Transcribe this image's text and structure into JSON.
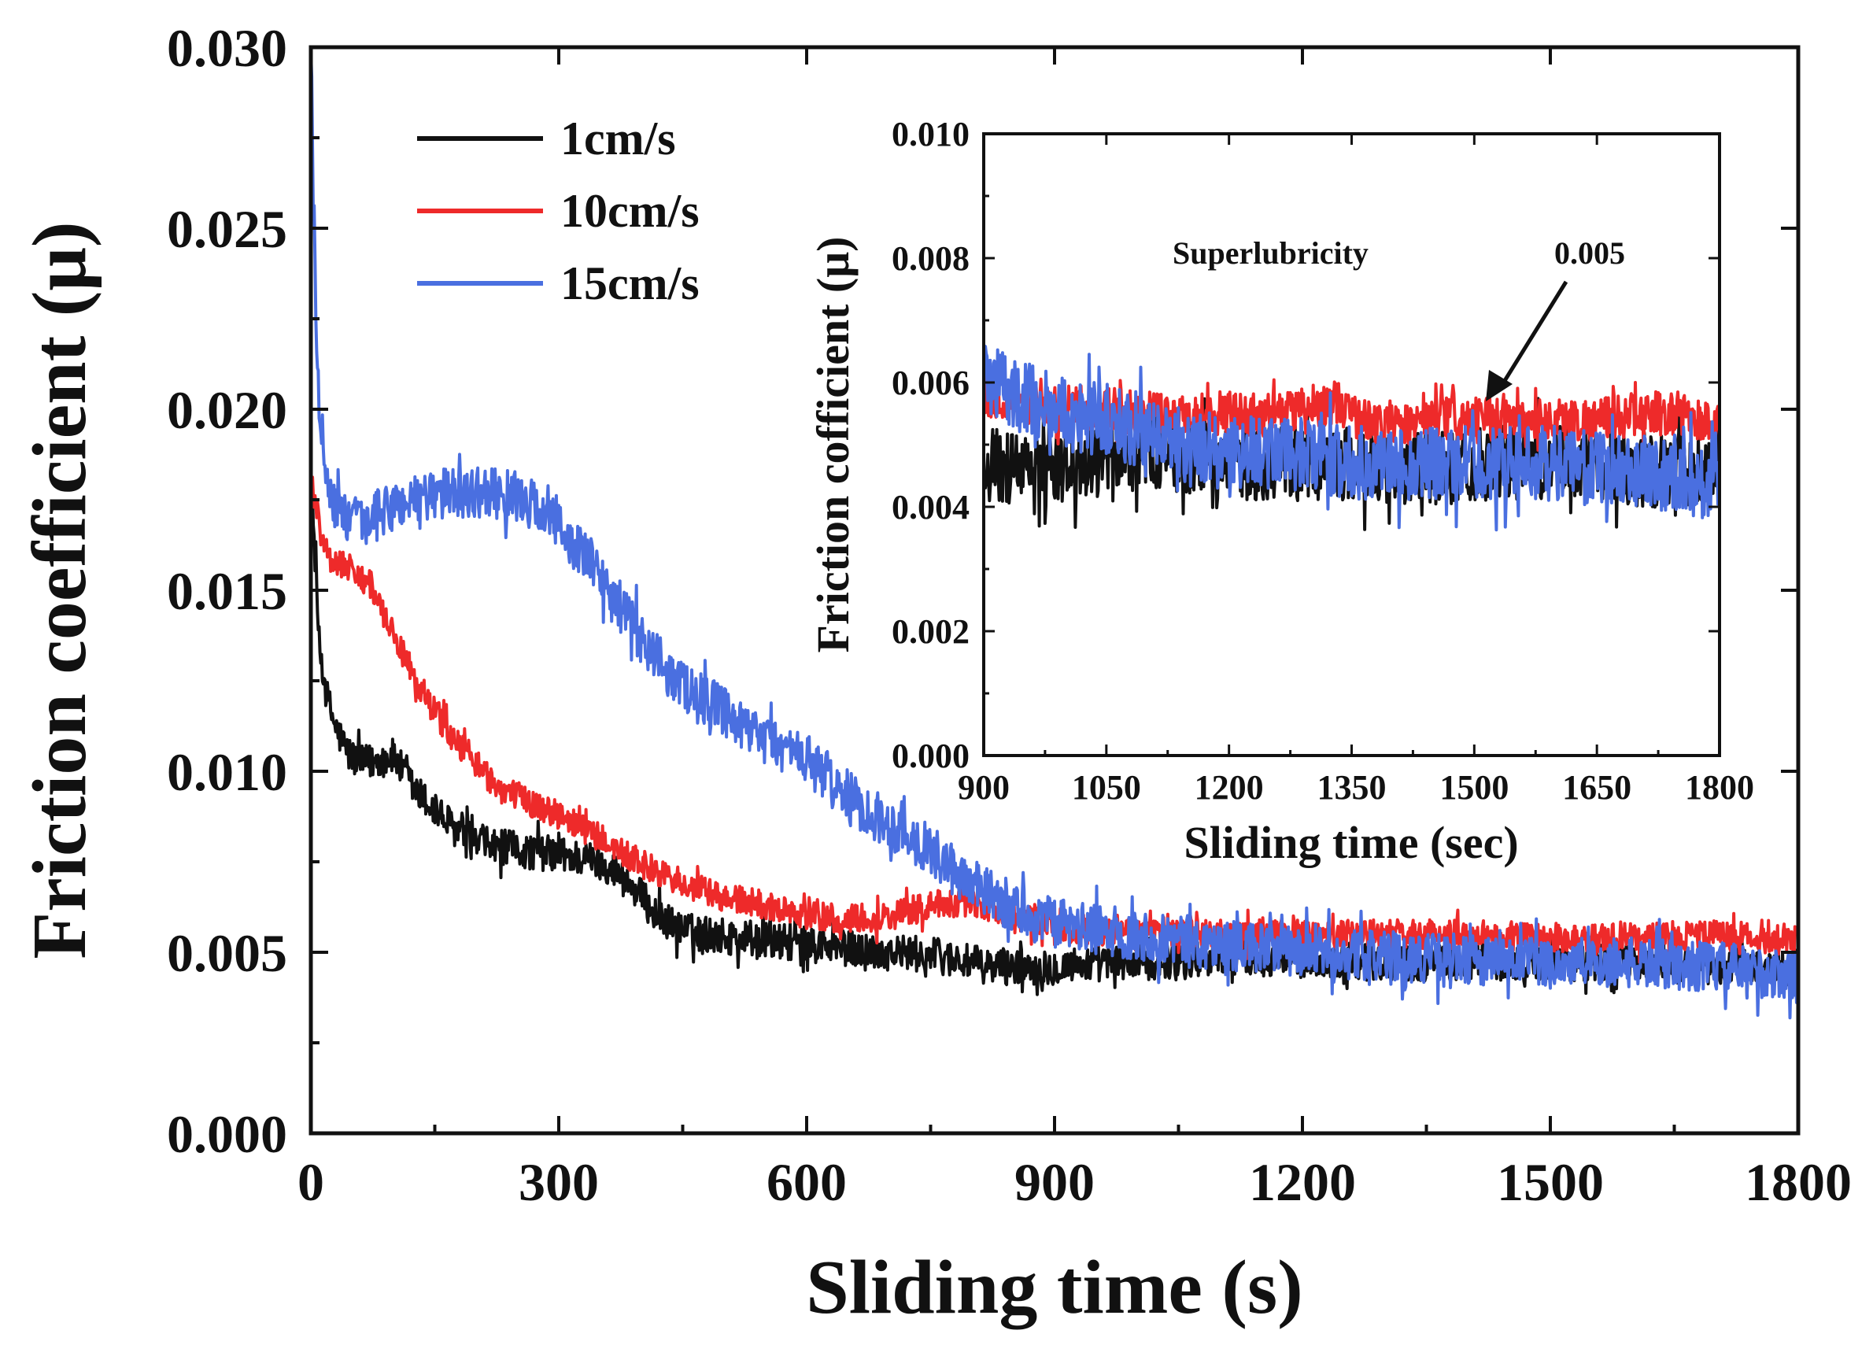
{
  "chart_data": [
    {
      "id": "main",
      "type": "line",
      "xlabel": "Sliding time (s)",
      "ylabel": "Friction coefficient (μ)",
      "xlim": [
        0,
        1800
      ],
      "ylim": [
        0,
        0.03
      ],
      "xticks": [
        0,
        300,
        600,
        900,
        1200,
        1500,
        1800
      ],
      "xtick_labels": [
        "0",
        "300",
        "600",
        "900",
        "1200",
        "1500",
        "1800"
      ],
      "yticks": [
        0,
        0.005,
        0.01,
        0.015,
        0.02,
        0.025,
        0.03
      ],
      "ytick_labels": [
        "0.000",
        "0.005",
        "0.010",
        "0.015",
        "0.020",
        "0.025",
        "0.030"
      ],
      "grid": false,
      "legend_position": "top-left",
      "series": [
        {
          "name": "1cm/s",
          "color": "#111111",
          "noise": 0.0005,
          "x": [
            0,
            5,
            10,
            20,
            30,
            45,
            60,
            80,
            100,
            125,
            150,
            180,
            200,
            230,
            260,
            300,
            330,
            360,
            390,
            420,
            450,
            480,
            520,
            560,
            600,
            650,
            700,
            760,
            820,
            870,
            900,
            950,
            1000,
            1100,
            1200,
            1300,
            1400,
            1500,
            1600,
            1700,
            1800
          ],
          "values": [
            0.018,
            0.016,
            0.0135,
            0.012,
            0.0112,
            0.0105,
            0.0102,
            0.0103,
            0.0104,
            0.0095,
            0.0089,
            0.0083,
            0.008,
            0.0079,
            0.0078,
            0.0077,
            0.0076,
            0.0074,
            0.0068,
            0.006,
            0.0056,
            0.0055,
            0.0054,
            0.0053,
            0.0052,
            0.0051,
            0.005,
            0.0049,
            0.0046,
            0.0046,
            0.0046,
            0.0047,
            0.0047,
            0.0049,
            0.0048,
            0.0047,
            0.0047,
            0.0047,
            0.0047,
            0.0046,
            0.0046
          ]
        },
        {
          "name": "10cm/s",
          "color": "#ee2a2a",
          "noise": 0.0004,
          "x": [
            0,
            5,
            10,
            20,
            30,
            50,
            70,
            90,
            110,
            140,
            170,
            200,
            230,
            260,
            300,
            340,
            380,
            420,
            460,
            500,
            550,
            600,
            650,
            700,
            750,
            800,
            850,
            900,
            1000,
            1100,
            1200,
            1300,
            1400,
            1500,
            1600,
            1700,
            1800
          ],
          "values": [
            0.018,
            0.0175,
            0.0168,
            0.016,
            0.0158,
            0.0156,
            0.0152,
            0.0142,
            0.0133,
            0.012,
            0.011,
            0.0102,
            0.0095,
            0.0092,
            0.0088,
            0.0083,
            0.0077,
            0.0072,
            0.0068,
            0.0065,
            0.0063,
            0.006,
            0.0059,
            0.006,
            0.0063,
            0.0064,
            0.006,
            0.0057,
            0.0055,
            0.0055,
            0.0055,
            0.0055,
            0.0055,
            0.0054,
            0.0054,
            0.0055,
            0.0053
          ]
        },
        {
          "name": "15cm/s",
          "color": "#4a6fe0",
          "noise": 0.0007,
          "x": [
            0,
            3,
            8,
            15,
            25,
            40,
            60,
            90,
            130,
            170,
            210,
            250,
            280,
            310,
            340,
            370,
            400,
            430,
            460,
            490,
            520,
            560,
            600,
            640,
            680,
            720,
            750,
            780,
            820,
            880,
            950,
            1000,
            1100,
            1200,
            1300,
            1400,
            1500,
            1600,
            1700,
            1800
          ],
          "values": [
            0.03,
            0.026,
            0.021,
            0.019,
            0.0175,
            0.017,
            0.0168,
            0.0172,
            0.0176,
            0.0177,
            0.0177,
            0.0176,
            0.0172,
            0.0165,
            0.0157,
            0.0147,
            0.0137,
            0.0128,
            0.0122,
            0.0118,
            0.0112,
            0.0108,
            0.0103,
            0.0095,
            0.0088,
            0.0083,
            0.0078,
            0.0072,
            0.0066,
            0.0059,
            0.0056,
            0.0055,
            0.0052,
            0.005,
            0.0049,
            0.0048,
            0.0047,
            0.0047,
            0.0046,
            0.0043
          ]
        }
      ]
    },
    {
      "id": "inset",
      "type": "line",
      "xlabel": "Sliding time (sec)",
      "ylabel": "Friction cofficient (μ)",
      "xlim": [
        900,
        1800
      ],
      "ylim": [
        0,
        0.01
      ],
      "xticks": [
        900,
        1050,
        1200,
        1350,
        1500,
        1650,
        1800
      ],
      "xtick_labels": [
        "900",
        "1050",
        "1200",
        "1350",
        "1500",
        "1650",
        "1800"
      ],
      "yticks": [
        0,
        0.002,
        0.004,
        0.006,
        0.008,
        0.01
      ],
      "ytick_labels": [
        "0.000",
        "0.002",
        "0.004",
        "0.006",
        "0.008",
        "0.010"
      ],
      "grid": false,
      "annotation": {
        "text": "Superlubricity",
        "value_text": "0.005",
        "arrow_to": [
          1520,
          0.0057
        ]
      },
      "series": [
        {
          "name": "1cm/s",
          "color": "#111111",
          "noise": 0.0006,
          "x": [
            900,
            940,
            980,
            1020,
            1060,
            1100,
            1150,
            1200,
            1250,
            1300,
            1350,
            1400,
            1450,
            1500,
            1550,
            1600,
            1650,
            1700,
            1750,
            1800
          ],
          "values": [
            0.0047,
            0.0046,
            0.0046,
            0.0047,
            0.0048,
            0.0049,
            0.0048,
            0.0047,
            0.0047,
            0.0047,
            0.0047,
            0.0046,
            0.0046,
            0.0047,
            0.0047,
            0.0047,
            0.0047,
            0.0046,
            0.0046,
            0.0047
          ]
        },
        {
          "name": "10cm/s",
          "color": "#ee2a2a",
          "noise": 0.00035,
          "x": [
            900,
            950,
            1000,
            1050,
            1100,
            1150,
            1200,
            1250,
            1300,
            1330,
            1360,
            1400,
            1450,
            1500,
            1550,
            1600,
            1650,
            1700,
            1750,
            1800
          ],
          "values": [
            0.0058,
            0.0057,
            0.0056,
            0.0056,
            0.0055,
            0.0055,
            0.0055,
            0.0055,
            0.0056,
            0.0057,
            0.0054,
            0.0053,
            0.0054,
            0.0054,
            0.0054,
            0.0054,
            0.0054,
            0.0055,
            0.0055,
            0.0053
          ]
        },
        {
          "name": "15cm/s",
          "color": "#4a6fe0",
          "noise": 0.0006,
          "x": [
            900,
            930,
            960,
            1000,
            1050,
            1100,
            1150,
            1200,
            1250,
            1300,
            1350,
            1400,
            1450,
            1500,
            1550,
            1600,
            1650,
            1700,
            1750,
            1800
          ],
          "values": [
            0.006,
            0.0059,
            0.0057,
            0.0055,
            0.0054,
            0.0052,
            0.005,
            0.0049,
            0.0049,
            0.0048,
            0.0047,
            0.0047,
            0.0047,
            0.0047,
            0.0047,
            0.0047,
            0.0046,
            0.0046,
            0.0045,
            0.0043
          ]
        }
      ]
    }
  ]
}
